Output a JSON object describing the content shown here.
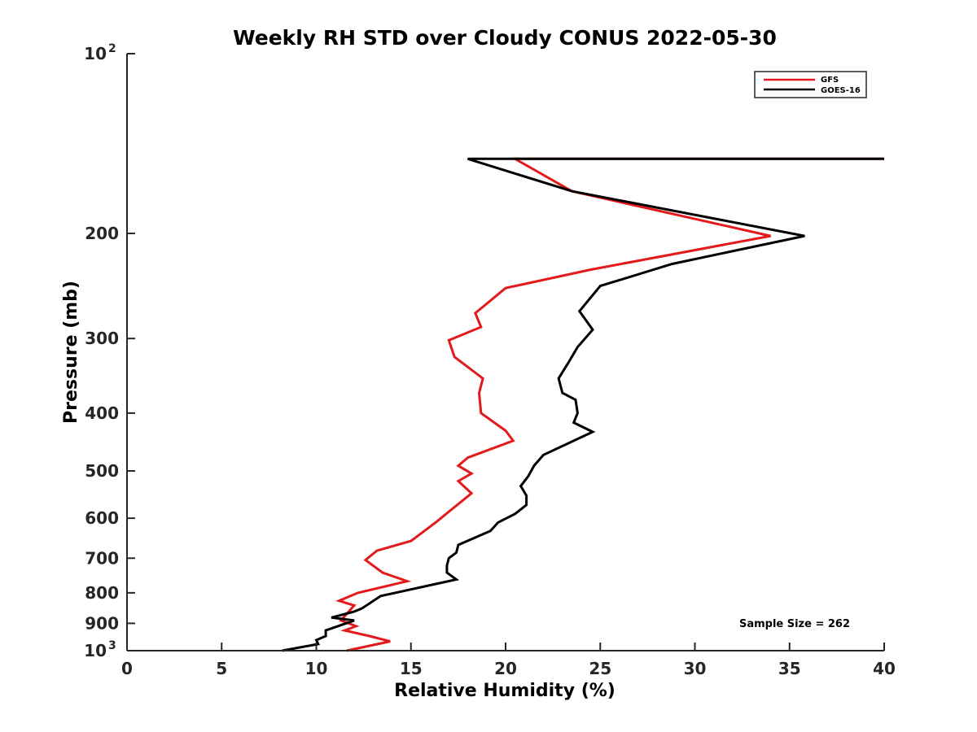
{
  "chart_data": {
    "type": "line",
    "title": "Weekly RH STD over Cloudy CONUS 2022-05-30",
    "xlabel": "Relative Humidity (%)",
    "ylabel": "Pressure (mb)",
    "xlim": [
      0,
      40
    ],
    "ylim": [
      100,
      1000
    ],
    "y_scale": "log",
    "y_reversed": true,
    "grid": false,
    "legend_position": "top-right",
    "x_ticks": [
      "0",
      "5",
      "10",
      "15",
      "20",
      "25",
      "30",
      "35",
      "40"
    ],
    "y_ticks": [
      {
        "value": 100,
        "base": "10",
        "exp": "2"
      },
      {
        "value": 200,
        "label": "200"
      },
      {
        "value": 300,
        "label": "300"
      },
      {
        "value": 400,
        "label": "400"
      },
      {
        "value": 500,
        "label": "500"
      },
      {
        "value": 600,
        "label": "600"
      },
      {
        "value": 700,
        "label": "700"
      },
      {
        "value": 800,
        "label": "800"
      },
      {
        "value": 900,
        "label": "900"
      },
      {
        "value": 1000,
        "base": "10",
        "exp": "3"
      }
    ],
    "annotation": "Sample Size = 262",
    "series": [
      {
        "name": "GFS",
        "color": "#e31a1c",
        "x": [
          40.0,
          20.5,
          23.5,
          34.0,
          24.5,
          20.0,
          18.4,
          18.7,
          17.0,
          17.3,
          18.8,
          18.6,
          18.7,
          20.0,
          20.4,
          18.0,
          17.5,
          18.2,
          17.5,
          18.2,
          16.3,
          15.0,
          13.2,
          12.6,
          13.5,
          14.8,
          12.2,
          11.2,
          12.0,
          11.3,
          12.1,
          11.5,
          12.8,
          13.9,
          11.6
        ],
        "y": [
          150,
          150,
          170,
          202,
          230,
          247,
          272,
          287,
          302,
          322,
          350,
          370,
          400,
          428,
          445,
          475,
          490,
          505,
          520,
          545,
          610,
          655,
          680,
          705,
          740,
          765,
          800,
          825,
          840,
          890,
          910,
          925,
          945,
          965,
          1000
        ]
      },
      {
        "name": "GOES-16",
        "color": "#000000",
        "x": [
          40.0,
          18.0,
          23.5,
          35.8,
          28.8,
          25.0,
          23.9,
          24.6,
          23.8,
          23.3,
          22.8,
          23.0,
          23.7,
          23.8,
          23.6,
          24.6,
          23.6,
          22.0,
          21.5,
          21.2,
          20.8,
          21.1,
          21.1,
          20.5,
          19.6,
          19.2,
          17.5,
          17.4,
          17.0,
          16.9,
          16.9,
          17.4,
          13.4,
          12.4,
          12.0,
          10.8,
          12.0,
          10.5,
          10.5,
          10.0,
          10.1,
          8.2
        ],
        "y": [
          150,
          150,
          170,
          202,
          225,
          245,
          270,
          290,
          310,
          330,
          350,
          370,
          380,
          400,
          415,
          430,
          445,
          470,
          490,
          510,
          530,
          550,
          570,
          590,
          610,
          630,
          665,
          685,
          700,
          720,
          740,
          760,
          810,
          850,
          860,
          880,
          890,
          925,
          945,
          960,
          975,
          1000
        ]
      }
    ]
  }
}
